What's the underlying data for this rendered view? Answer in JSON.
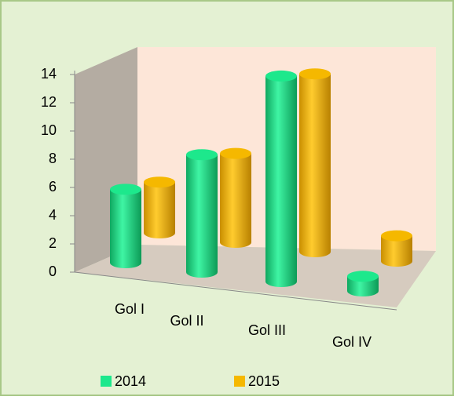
{
  "chart_data": {
    "type": "bar3d",
    "categories": [
      "Gol I",
      "Gol II",
      "Gol III",
      "Gol IV"
    ],
    "series": [
      {
        "name": "2014",
        "color": "#1de88c",
        "values": [
          5,
          8,
          14,
          1
        ]
      },
      {
        "name": "2015",
        "color": "#f5b800",
        "values": [
          4,
          7,
          14,
          2
        ]
      }
    ],
    "ylim": [
      0,
      14
    ],
    "yticks": [
      0,
      2,
      4,
      6,
      8,
      10,
      12,
      14
    ],
    "legend": "bottom"
  }
}
